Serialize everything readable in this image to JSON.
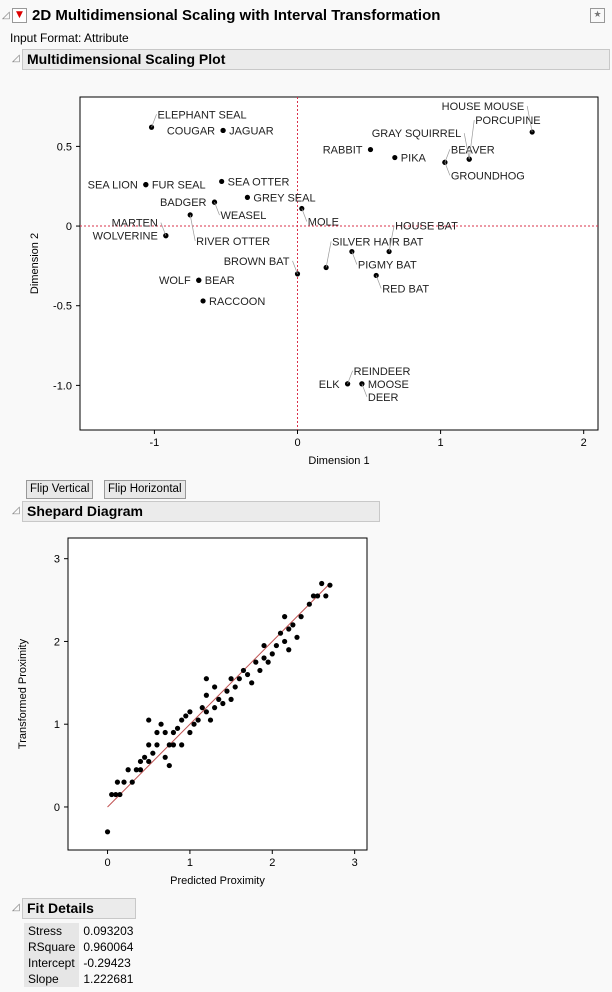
{
  "title": "2D Multidimensional Scaling with Interval Transformation",
  "input_format": "Input Format: Attribute",
  "mds_section": "Multidimensional Scaling Plot",
  "shepard_section": "Shepard Diagram",
  "fit_section": "Fit Details",
  "buttons": {
    "flip_vertical": "Flip Vertical",
    "flip_horizontal": "Flip Horizontal"
  },
  "colors": {
    "refline": "#d9304a",
    "fitline": "#c05050",
    "point": "#000000",
    "header": "#ebebeb"
  },
  "chart_data": [
    {
      "type": "scatter",
      "xlabel": "Dimension 1",
      "ylabel": "Dimension 2",
      "xlim": [
        -1.52,
        2.1
      ],
      "ylim": [
        -1.28,
        0.81
      ],
      "xticks": [
        "-1",
        "0",
        "1",
        "2"
      ],
      "yticks": [
        "-1.0",
        "-0.5",
        "0",
        "0.5"
      ],
      "reference_lines": {
        "x": 0,
        "y": 0
      },
      "points": [
        {
          "label": "ELEPHANT SEAL",
          "x": -1.02,
          "y": 0.62
        },
        {
          "label": "JAGUAR",
          "x": -0.52,
          "y": 0.6
        },
        {
          "label": "COUGAR",
          "x": -0.52,
          "y": 0.6
        },
        {
          "label": "FUR SEAL",
          "x": -1.06,
          "y": 0.26
        },
        {
          "label": "SEA LION",
          "x": -1.06,
          "y": 0.26
        },
        {
          "label": "SEA OTTER",
          "x": -0.53,
          "y": 0.28
        },
        {
          "label": "BADGER",
          "x": -0.58,
          "y": 0.15
        },
        {
          "label": "WEASEL",
          "x": -0.58,
          "y": 0.15
        },
        {
          "label": "GREY SEAL",
          "x": -0.35,
          "y": 0.18
        },
        {
          "label": "MOLE",
          "x": 0.03,
          "y": 0.11
        },
        {
          "label": "RIVER OTTER",
          "x": -0.75,
          "y": 0.07
        },
        {
          "label": "WOLVERINE",
          "x": -0.92,
          "y": -0.06
        },
        {
          "label": "MARTEN",
          "x": -0.92,
          "y": -0.06
        },
        {
          "label": "BEAR",
          "x": -0.69,
          "y": -0.34
        },
        {
          "label": "WOLF",
          "x": -0.69,
          "y": -0.34
        },
        {
          "label": "RACCOON",
          "x": -0.66,
          "y": -0.47
        },
        {
          "label": "BROWN BAT",
          "x": 0.0,
          "y": -0.3
        },
        {
          "label": "SILVER HAIR BAT",
          "x": 0.2,
          "y": -0.26
        },
        {
          "label": "PIGMY BAT",
          "x": 0.38,
          "y": -0.16
        },
        {
          "label": "HOUSE BAT",
          "x": 0.64,
          "y": -0.16
        },
        {
          "label": "RED BAT",
          "x": 0.55,
          "y": -0.31
        },
        {
          "label": "RABBIT",
          "x": 0.51,
          "y": 0.48
        },
        {
          "label": "PIKA",
          "x": 0.68,
          "y": 0.43
        },
        {
          "label": "BEAVER",
          "x": 1.03,
          "y": 0.4
        },
        {
          "label": "GROUNDHOG",
          "x": 1.03,
          "y": 0.4
        },
        {
          "label": "GRAY SQUIRREL",
          "x": 1.2,
          "y": 0.42
        },
        {
          "label": "PORCUPINE",
          "x": 1.2,
          "y": 0.42
        },
        {
          "label": "HOUSE MOUSE",
          "x": 1.64,
          "y": 0.59
        },
        {
          "label": "ELK",
          "x": 0.35,
          "y": -0.99
        },
        {
          "label": "REINDEER",
          "x": 0.35,
          "y": -0.99
        },
        {
          "label": "MOOSE",
          "x": 0.45,
          "y": -0.99
        },
        {
          "label": "DEER",
          "x": 0.45,
          "y": -0.99
        }
      ]
    },
    {
      "type": "scatter",
      "xlabel": "Predicted Proximity",
      "ylabel": "Transformed Proximity",
      "xlim": [
        -0.48,
        3.15
      ],
      "ylim": [
        -0.52,
        3.25
      ],
      "xticks": [
        "0",
        "1",
        "2",
        "3"
      ],
      "yticks": [
        "0",
        "1",
        "2",
        "3"
      ],
      "fit_line": [
        [
          0,
          0
        ],
        [
          2.7,
          2.7
        ]
      ],
      "points": [
        [
          0,
          -0.3
        ],
        [
          0.05,
          0.15
        ],
        [
          0.1,
          0.15
        ],
        [
          0.12,
          0.3
        ],
        [
          0.2,
          0.3
        ],
        [
          0.15,
          0.15
        ],
        [
          0.25,
          0.45
        ],
        [
          0.3,
          0.3
        ],
        [
          0.35,
          0.45
        ],
        [
          0.4,
          0.45
        ],
        [
          0.4,
          0.55
        ],
        [
          0.45,
          0.6
        ],
        [
          0.5,
          0.55
        ],
        [
          0.5,
          0.75
        ],
        [
          0.55,
          0.65
        ],
        [
          0.6,
          0.75
        ],
        [
          0.6,
          0.9
        ],
        [
          0.5,
          1.05
        ],
        [
          0.65,
          1.0
        ],
        [
          0.7,
          0.9
        ],
        [
          0.75,
          0.75
        ],
        [
          0.8,
          0.9
        ],
        [
          0.85,
          0.95
        ],
        [
          0.9,
          0.75
        ],
        [
          0.9,
          1.05
        ],
        [
          0.95,
          1.1
        ],
        [
          1.0,
          0.9
        ],
        [
          1.0,
          1.15
        ],
        [
          1.1,
          1.05
        ],
        [
          1.15,
          1.2
        ],
        [
          1.2,
          1.15
        ],
        [
          1.2,
          1.35
        ],
        [
          1.25,
          1.05
        ],
        [
          1.3,
          1.2
        ],
        [
          1.35,
          1.3
        ],
        [
          1.4,
          1.25
        ],
        [
          1.45,
          1.4
        ],
        [
          1.5,
          1.3
        ],
        [
          1.5,
          1.55
        ],
        [
          1.55,
          1.45
        ],
        [
          1.6,
          1.55
        ],
        [
          1.7,
          1.6
        ],
        [
          1.75,
          1.5
        ],
        [
          1.8,
          1.75
        ],
        [
          1.85,
          1.65
        ],
        [
          1.9,
          1.8
        ],
        [
          1.95,
          1.75
        ],
        [
          2.0,
          1.85
        ],
        [
          2.05,
          1.95
        ],
        [
          2.1,
          2.1
        ],
        [
          2.15,
          2.0
        ],
        [
          2.2,
          2.15
        ],
        [
          2.25,
          2.2
        ],
        [
          2.3,
          2.05
        ],
        [
          2.35,
          2.3
        ],
        [
          2.45,
          2.45
        ],
        [
          2.5,
          2.55
        ],
        [
          2.55,
          2.55
        ],
        [
          2.6,
          2.7
        ],
        [
          2.65,
          2.55
        ],
        [
          2.7,
          2.68
        ],
        [
          0.75,
          0.5
        ],
        [
          1.2,
          1.55
        ],
        [
          2.2,
          1.9
        ],
        [
          2.15,
          2.3
        ],
        [
          1.3,
          1.45
        ],
        [
          0.7,
          0.6
        ],
        [
          0.8,
          0.75
        ],
        [
          1.05,
          1.0
        ],
        [
          1.65,
          1.65
        ],
        [
          1.9,
          1.95
        ]
      ]
    }
  ],
  "fit_details": [
    {
      "label": "Stress",
      "value": "0.093203"
    },
    {
      "label": "RSquare",
      "value": "0.960064"
    },
    {
      "label": "Intercept",
      "value": "-0.29423"
    },
    {
      "label": "Slope",
      "value": "1.222681"
    }
  ]
}
